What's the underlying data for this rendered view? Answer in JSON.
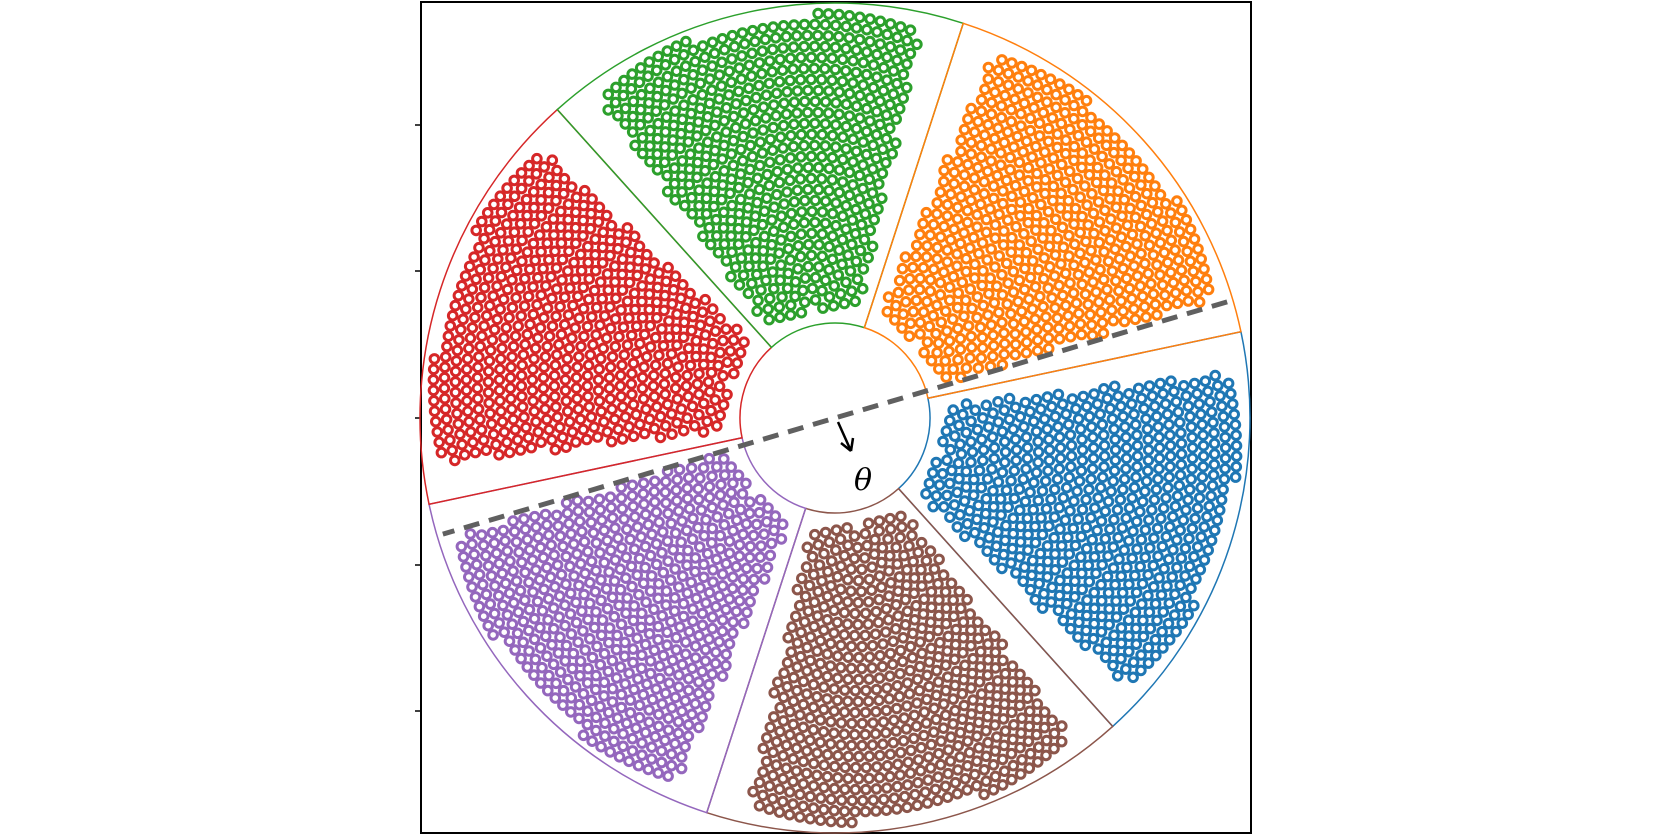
{
  "figure": {
    "angle_symbol": "θ",
    "arrow_icon": "arrow-down-right-icon"
  },
  "sectors": [
    {
      "name": "blue",
      "color": "#1f77b4"
    },
    {
      "name": "brown",
      "color": "#8c564b"
    },
    {
      "name": "purple",
      "color": "#9467bd"
    },
    {
      "name": "red",
      "color": "#d62728"
    },
    {
      "name": "green",
      "color": "#2ca02c"
    },
    {
      "name": "orange",
      "color": "#ff7f0e"
    }
  ],
  "divider_color": "#606060"
}
